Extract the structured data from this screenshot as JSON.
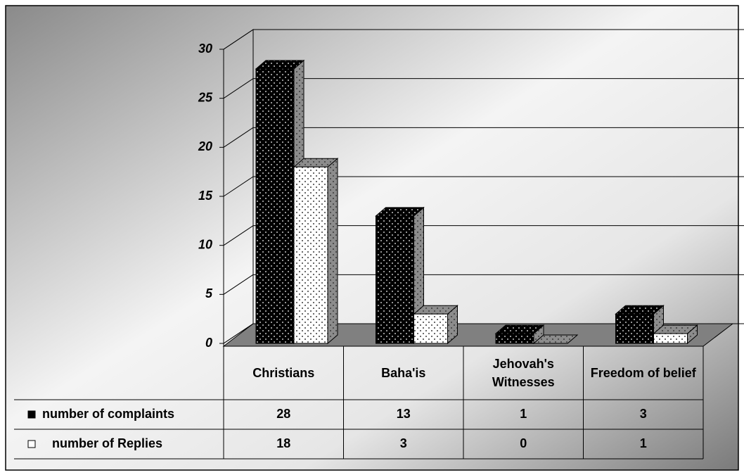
{
  "chart_data": {
    "type": "bar3d",
    "categories": [
      "Christians",
      "Baha'is",
      "Jehovah's Witnesses",
      "Freedom of belief"
    ],
    "series": [
      {
        "name": "number of complaints",
        "color": "#000000",
        "values": [
          28,
          13,
          1,
          3
        ]
      },
      {
        "name": "number of Replies",
        "color": "#ffffff",
        "values": [
          18,
          3,
          0,
          1
        ]
      }
    ],
    "ylim": [
      0,
      30
    ],
    "yticks": [
      0,
      5,
      10,
      15,
      20,
      25,
      30
    ],
    "grid": true
  }
}
